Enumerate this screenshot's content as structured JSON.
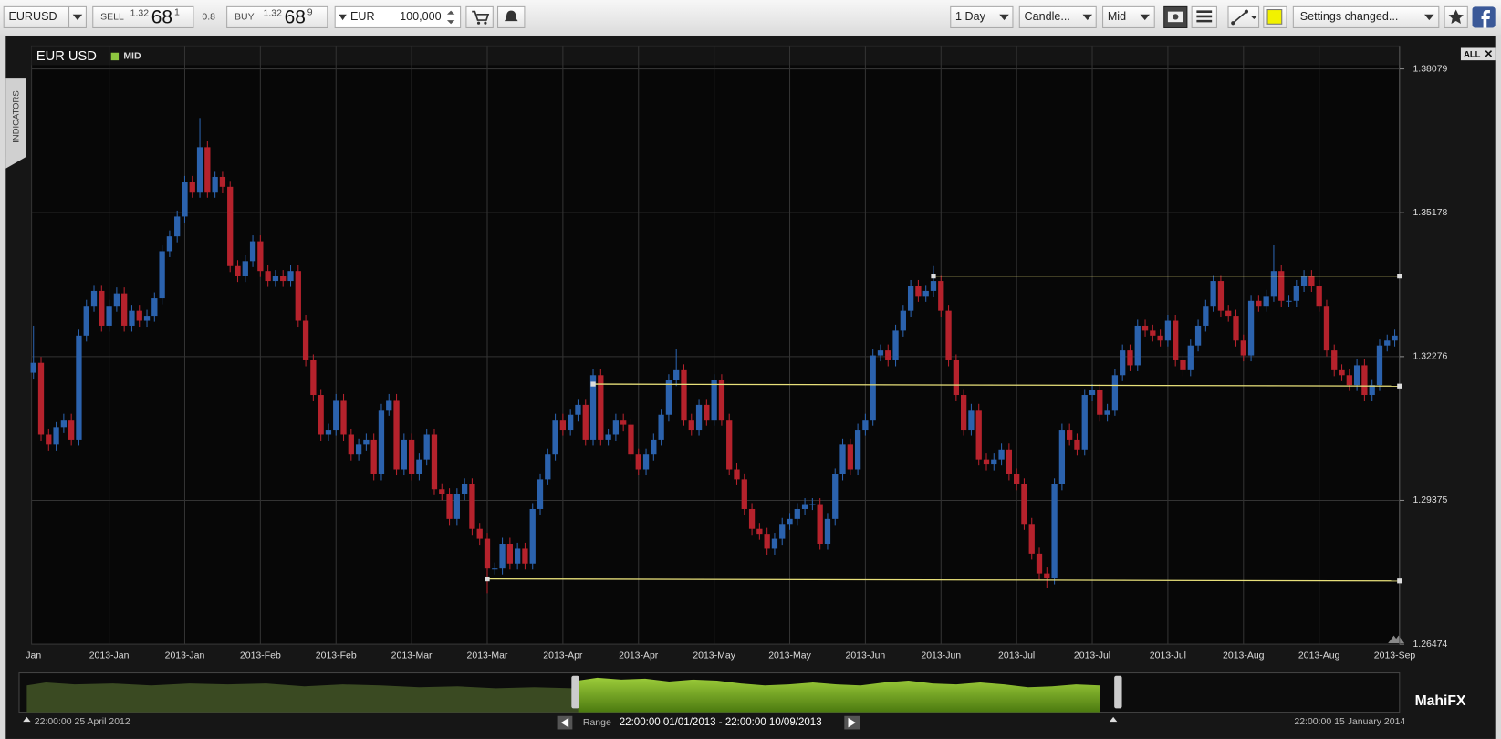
{
  "toolbar": {
    "symbol": "EURUSD",
    "sell_label": "SELL",
    "sell_big_figure": "1.32",
    "sell_pips": "68",
    "sell_pipette": "1",
    "spread": "0.8",
    "buy_label": "BUY",
    "buy_big_figure": "1.32",
    "buy_pips": "68",
    "buy_pipette": "9",
    "currency": "EUR",
    "amount": "100,000",
    "interval": "1 Day",
    "chart_style": "Candle...",
    "price_type": "Mid",
    "settings": "Settings changed..."
  },
  "side_tab": "INDICATORS",
  "chart_data": {
    "type": "candlestick",
    "title": "EUR USD",
    "zoom_label": "ALL",
    "up_color": "#2b62ad",
    "down_color": "#b5222c",
    "grid": true,
    "ylim": [
      1.26474,
      1.38156
    ],
    "yticks": [
      1.38079,
      1.35178,
      1.32276,
      1.29375,
      1.26474
    ],
    "categories": [
      "Jan",
      null,
      null,
      null,
      null,
      null,
      null,
      null,
      null,
      null,
      "2013-Jan",
      null,
      null,
      null,
      null,
      null,
      null,
      null,
      null,
      null,
      "2013-Jan",
      null,
      null,
      null,
      null,
      null,
      null,
      null,
      null,
      null,
      "2013-Feb",
      null,
      null,
      null,
      null,
      null,
      null,
      null,
      null,
      null,
      "2013-Feb",
      null,
      null,
      null,
      null,
      null,
      null,
      null,
      null,
      null,
      "2013-Mar",
      null,
      null,
      null,
      null,
      null,
      null,
      null,
      null,
      null,
      "2013-Mar",
      null,
      null,
      null,
      null,
      null,
      null,
      null,
      null,
      null,
      "2013-Apr",
      null,
      null,
      null,
      null,
      null,
      null,
      null,
      null,
      null,
      "2013-Apr",
      null,
      null,
      null,
      null,
      null,
      null,
      null,
      null,
      null,
      "2013-May",
      null,
      null,
      null,
      null,
      null,
      null,
      null,
      null,
      null,
      "2013-May",
      null,
      null,
      null,
      null,
      null,
      null,
      null,
      null,
      null,
      "2013-Jun",
      null,
      null,
      null,
      null,
      null,
      null,
      null,
      null,
      null,
      "2013-Jun",
      null,
      null,
      null,
      null,
      null,
      null,
      null,
      null,
      null,
      "2013-Jul",
      null,
      null,
      null,
      null,
      null,
      null,
      null,
      null,
      null,
      "2013-Jul",
      null,
      null,
      null,
      null,
      null,
      null,
      null,
      null,
      null,
      "2013-Jul",
      null,
      null,
      null,
      null,
      null,
      null,
      null,
      null,
      null,
      "2013-Aug",
      null,
      null,
      null,
      null,
      null,
      null,
      null,
      null,
      null,
      "2013-Aug",
      null,
      null,
      null,
      null,
      null,
      null,
      null,
      null,
      null,
      "2013-Sep"
    ],
    "series": [
      {
        "name": "MID",
        "color": "#8dc63f",
        "open": [
          1.3195,
          1.3215,
          1.307,
          1.305,
          1.3085,
          1.31,
          1.306,
          1.327,
          1.333,
          1.336,
          1.329,
          1.333,
          1.3355,
          1.329,
          1.332,
          1.33,
          1.331,
          1.3345,
          1.344,
          1.347,
          1.351,
          1.358,
          1.356,
          1.365,
          1.356,
          1.359,
          1.357,
          1.341,
          1.339,
          1.342,
          1.346,
          1.34,
          1.338,
          1.339,
          1.338,
          1.34,
          1.33,
          1.322,
          1.315,
          1.307,
          1.308,
          1.314,
          1.307,
          1.303,
          1.305,
          1.306,
          1.299,
          1.312,
          1.314,
          1.3,
          1.306,
          1.299,
          1.302,
          1.307,
          1.296,
          1.295,
          1.29,
          1.295,
          1.297,
          1.288,
          1.286,
          1.28,
          1.28,
          1.285,
          1.281,
          1.284,
          1.281,
          1.292,
          1.298,
          1.303,
          1.31,
          1.308,
          1.311,
          1.313,
          1.306,
          1.319,
          1.306,
          1.307,
          1.31,
          1.309,
          1.303,
          1.3,
          1.303,
          1.306,
          1.311,
          1.318,
          1.32,
          1.31,
          1.308,
          1.313,
          1.31,
          1.318,
          1.31,
          1.3,
          1.298,
          1.292,
          1.288,
          1.287,
          1.284,
          1.286,
          1.289,
          1.29,
          1.292,
          1.293,
          1.293,
          1.285,
          1.29,
          1.299,
          1.305,
          1.3,
          1.308,
          1.31,
          1.323,
          1.324,
          1.322,
          1.328,
          1.332,
          1.337,
          1.335,
          1.336,
          1.338,
          1.332,
          1.322,
          1.315,
          1.308,
          1.312,
          1.302,
          1.301,
          1.302,
          1.304,
          1.299,
          1.297,
          1.289,
          1.283,
          1.279,
          1.278,
          1.297,
          1.308,
          1.306,
          1.304,
          1.315,
          1.316,
          1.311,
          1.312,
          1.319,
          1.324,
          1.321,
          1.329,
          1.328,
          1.327,
          1.326,
          1.33,
          1.322,
          1.32,
          1.325,
          1.329,
          1.333,
          1.338,
          1.332,
          1.331,
          1.326,
          1.323,
          1.334,
          1.333,
          1.335,
          1.34,
          1.334,
          1.334,
          1.337,
          1.339,
          1.337,
          1.333,
          1.324,
          1.32,
          1.319,
          1.317,
          1.321,
          1.315,
          1.317,
          1.325,
          1.326
        ],
        "high": [
          1.329,
          1.3227,
          1.3082,
          1.3097,
          1.3112,
          1.3112,
          1.3282,
          1.3342,
          1.3372,
          1.3372,
          1.3342,
          1.3367,
          1.3367,
          1.3332,
          1.3332,
          1.3322,
          1.3357,
          1.3452,
          1.3482,
          1.3522,
          1.3592,
          1.3592,
          1.3709,
          1.3662,
          1.3602,
          1.3602,
          1.3582,
          1.3422,
          1.3432,
          1.3472,
          1.3472,
          1.3412,
          1.3402,
          1.3402,
          1.3412,
          1.3412,
          1.3312,
          1.3232,
          1.3162,
          1.3092,
          1.3152,
          1.3152,
          1.3082,
          1.3062,
          1.3072,
          1.3072,
          1.3132,
          1.3152,
          1.3152,
          1.3072,
          1.3072,
          1.3032,
          1.3082,
          1.3082,
          1.2972,
          1.2962,
          1.2962,
          1.2982,
          1.2982,
          1.2892,
          1.2872,
          1.2812,
          1.2862,
          1.2862,
          1.2852,
          1.2852,
          1.2932,
          1.2992,
          1.3042,
          1.3112,
          1.3112,
          1.3122,
          1.3142,
          1.3142,
          1.3202,
          1.3202,
          1.3082,
          1.3112,
          1.3112,
          1.3102,
          1.3042,
          1.3042,
          1.3072,
          1.3122,
          1.3192,
          1.3242,
          1.3212,
          1.3112,
          1.3142,
          1.3142,
          1.3192,
          1.3192,
          1.3112,
          1.3012,
          1.2992,
          1.2932,
          1.2892,
          1.2882,
          1.2872,
          1.2902,
          1.2912,
          1.2932,
          1.2942,
          1.2942,
          1.2942,
          1.2912,
          1.3002,
          1.3062,
          1.3062,
          1.3092,
          1.3112,
          1.3242,
          1.3252,
          1.3252,
          1.3292,
          1.3332,
          1.3382,
          1.3382,
          1.3372,
          1.341,
          1.3392,
          1.3332,
          1.3232,
          1.3162,
          1.3132,
          1.3132,
          1.3032,
          1.3032,
          1.3052,
          1.3052,
          1.3002,
          1.2982,
          1.2902,
          1.2842,
          1.2802,
          1.2982,
          1.3092,
          1.3092,
          1.3072,
          1.3162,
          1.3172,
          1.3172,
          1.3132,
          1.3202,
          1.3252,
          1.3252,
          1.3302,
          1.3302,
          1.3292,
          1.3282,
          1.3312,
          1.3312,
          1.3232,
          1.3262,
          1.3302,
          1.3342,
          1.3392,
          1.3392,
          1.3332,
          1.3322,
          1.3272,
          1.3352,
          1.3352,
          1.3362,
          1.3452,
          1.3412,
          1.3352,
          1.3382,
          1.3402,
          1.3402,
          1.3382,
          1.3342,
          1.3252,
          1.3212,
          1.3202,
          1.3222,
          1.3222,
          1.3182,
          1.3262,
          1.3272,
          1.3282
        ],
        "low": [
          1.3183,
          1.3058,
          1.3038,
          1.3038,
          1.3073,
          1.3048,
          1.3048,
          1.3258,
          1.3318,
          1.3278,
          1.3278,
          1.3318,
          1.3278,
          1.3278,
          1.3288,
          1.3288,
          1.3298,
          1.3333,
          1.3428,
          1.3458,
          1.3498,
          1.3548,
          1.3548,
          1.3548,
          1.3548,
          1.3558,
          1.3398,
          1.3378,
          1.3378,
          1.3408,
          1.3388,
          1.3368,
          1.3368,
          1.3368,
          1.3368,
          1.3288,
          1.3208,
          1.3138,
          1.3058,
          1.3058,
          1.3068,
          1.3058,
          1.3018,
          1.3018,
          1.3038,
          1.2978,
          1.2978,
          1.3108,
          1.2988,
          1.2988,
          1.2978,
          1.2978,
          1.3008,
          1.2948,
          1.2938,
          1.2888,
          1.2888,
          1.2938,
          1.2868,
          1.2848,
          1.275,
          1.2788,
          1.2788,
          1.2798,
          1.2798,
          1.2798,
          1.2798,
          1.2908,
          1.2968,
          1.3018,
          1.3068,
          1.3068,
          1.3098,
          1.3048,
          1.3048,
          1.3048,
          1.3048,
          1.3058,
          1.3078,
          1.3018,
          1.2988,
          1.2988,
          1.3018,
          1.3048,
          1.3098,
          1.3168,
          1.3088,
          1.3068,
          1.3068,
          1.3088,
          1.3088,
          1.3088,
          1.2988,
          1.2968,
          1.2908,
          1.2868,
          1.2858,
          1.2828,
          1.2828,
          1.2848,
          1.2878,
          1.2888,
          1.2908,
          1.2918,
          1.2838,
          1.2838,
          1.2888,
          1.2978,
          1.2988,
          1.2988,
          1.3068,
          1.3088,
          1.3218,
          1.3208,
          1.3208,
          1.3268,
          1.3308,
          1.3338,
          1.3338,
          1.3348,
          1.3308,
          1.3208,
          1.3138,
          1.3068,
          1.3068,
          1.3008,
          1.2998,
          1.2998,
          1.3008,
          1.2978,
          1.2958,
          1.2878,
          1.2818,
          1.2778,
          1.276,
          1.2768,
          1.2958,
          1.3048,
          1.3028,
          1.3028,
          1.3138,
          1.3098,
          1.3098,
          1.3108,
          1.3178,
          1.3198,
          1.3198,
          1.3268,
          1.3258,
          1.3248,
          1.3248,
          1.3208,
          1.3188,
          1.3188,
          1.3238,
          1.3278,
          1.3318,
          1.3308,
          1.3298,
          1.3248,
          1.3218,
          1.3218,
          1.3318,
          1.3318,
          1.3338,
          1.3328,
          1.3328,
          1.3328,
          1.3358,
          1.3358,
          1.3318,
          1.3228,
          1.3188,
          1.3178,
          1.3158,
          1.3158,
          1.3138,
          1.3138,
          1.3158,
          1.3238,
          1.3248
        ],
        "close": [
          1.3215,
          1.307,
          1.305,
          1.3085,
          1.31,
          1.306,
          1.327,
          1.333,
          1.336,
          1.329,
          1.333,
          1.3355,
          1.329,
          1.332,
          1.33,
          1.331,
          1.3345,
          1.344,
          1.347,
          1.351,
          1.358,
          1.356,
          1.365,
          1.356,
          1.359,
          1.357,
          1.341,
          1.339,
          1.342,
          1.346,
          1.34,
          1.338,
          1.339,
          1.338,
          1.34,
          1.33,
          1.322,
          1.315,
          1.307,
          1.308,
          1.314,
          1.307,
          1.303,
          1.305,
          1.306,
          1.299,
          1.312,
          1.314,
          1.3,
          1.306,
          1.299,
          1.302,
          1.307,
          1.296,
          1.295,
          1.29,
          1.295,
          1.297,
          1.288,
          1.286,
          1.28,
          1.28,
          1.285,
          1.281,
          1.284,
          1.281,
          1.292,
          1.298,
          1.303,
          1.31,
          1.308,
          1.311,
          1.313,
          1.306,
          1.319,
          1.306,
          1.307,
          1.31,
          1.309,
          1.303,
          1.3,
          1.303,
          1.306,
          1.311,
          1.318,
          1.32,
          1.31,
          1.308,
          1.313,
          1.31,
          1.318,
          1.31,
          1.3,
          1.298,
          1.292,
          1.288,
          1.287,
          1.284,
          1.286,
          1.289,
          1.29,
          1.292,
          1.293,
          1.293,
          1.285,
          1.29,
          1.299,
          1.305,
          1.3,
          1.308,
          1.31,
          1.323,
          1.324,
          1.322,
          1.328,
          1.332,
          1.337,
          1.335,
          1.336,
          1.338,
          1.332,
          1.322,
          1.315,
          1.308,
          1.312,
          1.302,
          1.301,
          1.302,
          1.304,
          1.299,
          1.297,
          1.289,
          1.283,
          1.279,
          1.278,
          1.297,
          1.308,
          1.306,
          1.304,
          1.315,
          1.316,
          1.311,
          1.312,
          1.319,
          1.324,
          1.321,
          1.329,
          1.328,
          1.327,
          1.326,
          1.33,
          1.322,
          1.32,
          1.325,
          1.329,
          1.333,
          1.338,
          1.332,
          1.331,
          1.326,
          1.323,
          1.334,
          1.333,
          1.335,
          1.34,
          1.334,
          1.334,
          1.337,
          1.339,
          1.337,
          1.333,
          1.324,
          1.32,
          1.319,
          1.317,
          1.321,
          1.315,
          1.317,
          1.325,
          1.326,
          1.327
        ]
      }
    ],
    "trend_lines": [
      {
        "color": "#e8e07a",
        "x0": 119,
        "y0": 1.339,
        "y1": 1.339
      },
      {
        "color": "#e8e07a",
        "x0": 74,
        "y0": 1.3172,
        "y1": 1.3168
      },
      {
        "color": "#e8e07a",
        "x0": 60,
        "y0": 1.2779,
        "y1": 1.2775
      }
    ]
  },
  "navigator": {
    "start": "22:00:00 25 April 2012",
    "range_label": "Range",
    "range": "22:00:00 01/01/2013 - 22:00:00 10/09/2013",
    "end": "22:00:00 15 January 2014",
    "brand": "MahiFX"
  }
}
